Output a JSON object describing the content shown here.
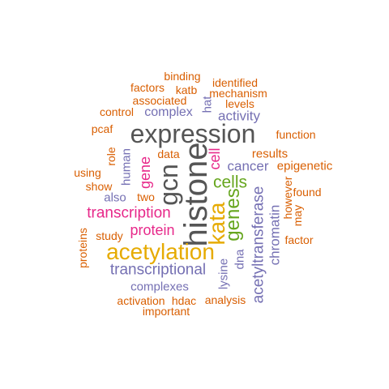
{
  "words": {
    "histone": "histone",
    "expression": "expression",
    "gcn": "gcn",
    "acetylation": "acetylation",
    "kata": "kata",
    "genes": "genes",
    "cells": "cells",
    "transcription": "transcription",
    "transcriptional": "transcriptional",
    "acetyltransferase": "acetyltransferase",
    "protein": "protein",
    "cell": "cell",
    "gene": "gene",
    "activity": "activity",
    "cancer": "cancer",
    "complex": "complex",
    "chromatin": "chromatin",
    "complexes": "complexes",
    "human": "human",
    "results": "results",
    "epigenetic": "epigenetic",
    "function": "function",
    "also": "also",
    "lysine": "lysine",
    "hat": "hat",
    "dna": "dna",
    "binding": "binding",
    "identified": "identified",
    "factors": "factors",
    "katb": "katb",
    "mechanism": "mechanism",
    "associated": "associated",
    "levels": "levels",
    "control": "control",
    "pcaf": "pcaf",
    "role": "role",
    "data": "data",
    "using": "using",
    "show": "show",
    "two": "two",
    "study": "study",
    "proteins": "proteins",
    "however": "however",
    "found": "found",
    "may": "may",
    "factor": "factor",
    "activation": "activation",
    "hdac": "hdac",
    "analysis": "analysis",
    "important": "important"
  }
}
